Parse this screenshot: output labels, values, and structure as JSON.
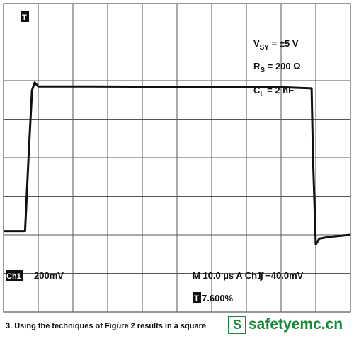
{
  "trigger_marker": "T",
  "conditions": {
    "vsy_main": "V",
    "vsy_sub": "SY",
    "vsy_rest": " = ±5 V",
    "rs_main": "R",
    "rs_sub": "S",
    "rs_rest": " = 200 Ω",
    "cl_main": "C",
    "cl_sub": "L",
    "cl_rest": " = 2 nF"
  },
  "readout": {
    "channel_tag": "Ch1",
    "channel_scale": "200mV",
    "timebase": "M 10.0 µs A Ch1",
    "trigger_level": "∫ −40.0mV",
    "trigger_tag": "T",
    "trigger_pos": "7.600%"
  },
  "caption": "3. Using the techniques of Figure 2 results in a square",
  "watermark": {
    "badge": "S",
    "text": "safetyemc.cn"
  },
  "colors": {
    "grid": "#555555",
    "trace": "#111111",
    "watermark": "#1a8a3a"
  },
  "chart_data": {
    "type": "line",
    "grid": true,
    "x_divisions": 10,
    "y_divisions": 8,
    "xlim": [
      0,
      10
    ],
    "ylim": [
      -4,
      4
    ],
    "series": [
      {
        "x": [
          0,
          0.62,
          0.72,
          0.82,
          0.9,
          1.0,
          2.0,
          5.0,
          8.0,
          8.88,
          8.92,
          9.0,
          9.1,
          9.4,
          10.0
        ],
        "y": [
          -1.9,
          -1.9,
          0.0,
          1.75,
          1.95,
          1.85,
          1.85,
          1.84,
          1.83,
          1.8,
          0.0,
          -2.25,
          -2.1,
          -2.05,
          -2.0
        ]
      }
    ]
  }
}
